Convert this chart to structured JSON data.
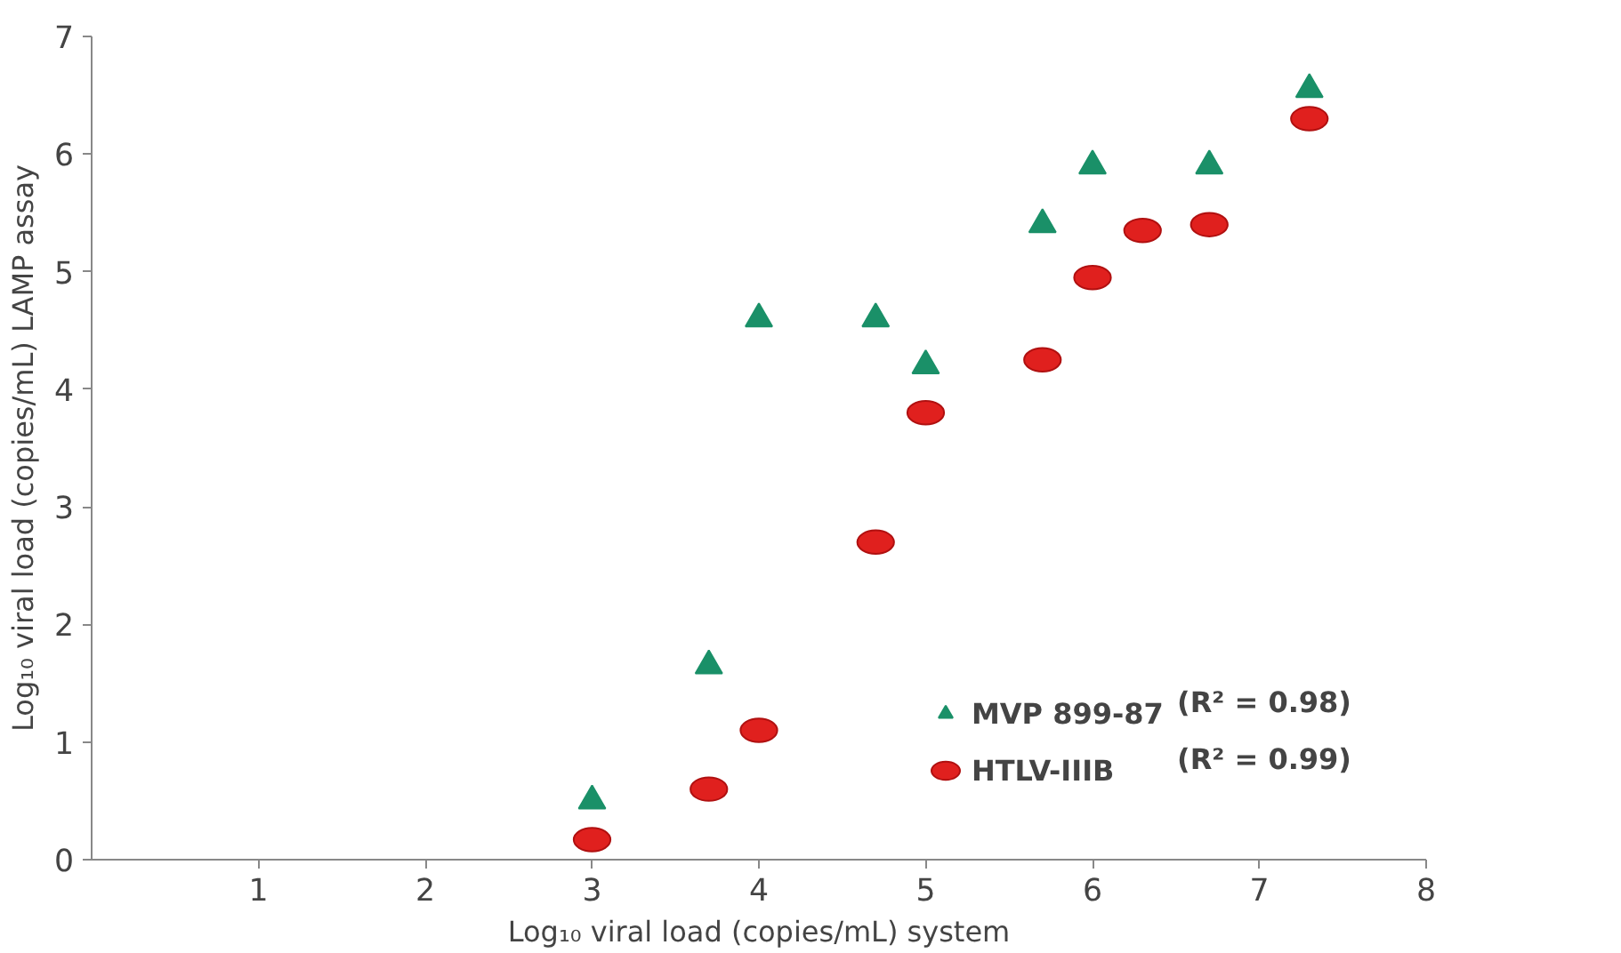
{
  "chart_data": {
    "type": "scatter",
    "xlabel": "Log₁₀ viral load (copies/mL) system",
    "ylabel": "Log₁₀ viral load (copies/mL) LAMP assay",
    "series": [
      {
        "name": "MVP 899-87",
        "color": "#1a9068",
        "marker": "triangle",
        "x": [
          3,
          3.7,
          4,
          4.7,
          5,
          5.7,
          6,
          6.7,
          7.3
        ],
        "values": [
          0.5,
          1.65,
          4.6,
          4.6,
          4.2,
          5.4,
          5.9,
          5.9,
          6.55
        ]
      },
      {
        "name": "HTLV-IIIB",
        "color": "#e0201e",
        "marker": "circle",
        "x": [
          3,
          3.7,
          4,
          4.7,
          5,
          5.7,
          6,
          6.3,
          6.7,
          7.3
        ],
        "values": [
          0.17,
          0.6,
          1.1,
          2.7,
          3.8,
          4.25,
          4.95,
          5.35,
          5.4,
          6.3
        ]
      }
    ],
    "annotations": [
      "(R² = 0.98)",
      "(R² = 0.99)"
    ],
    "xlim": [
      0,
      8
    ],
    "xticks": [
      1,
      2,
      3,
      4,
      5,
      6,
      7,
      8
    ],
    "ylim": [
      0,
      7
    ],
    "yticks": [
      0,
      1,
      2,
      3,
      4,
      5,
      6,
      7
    ],
    "grid": false,
    "legend": "bottom right"
  }
}
